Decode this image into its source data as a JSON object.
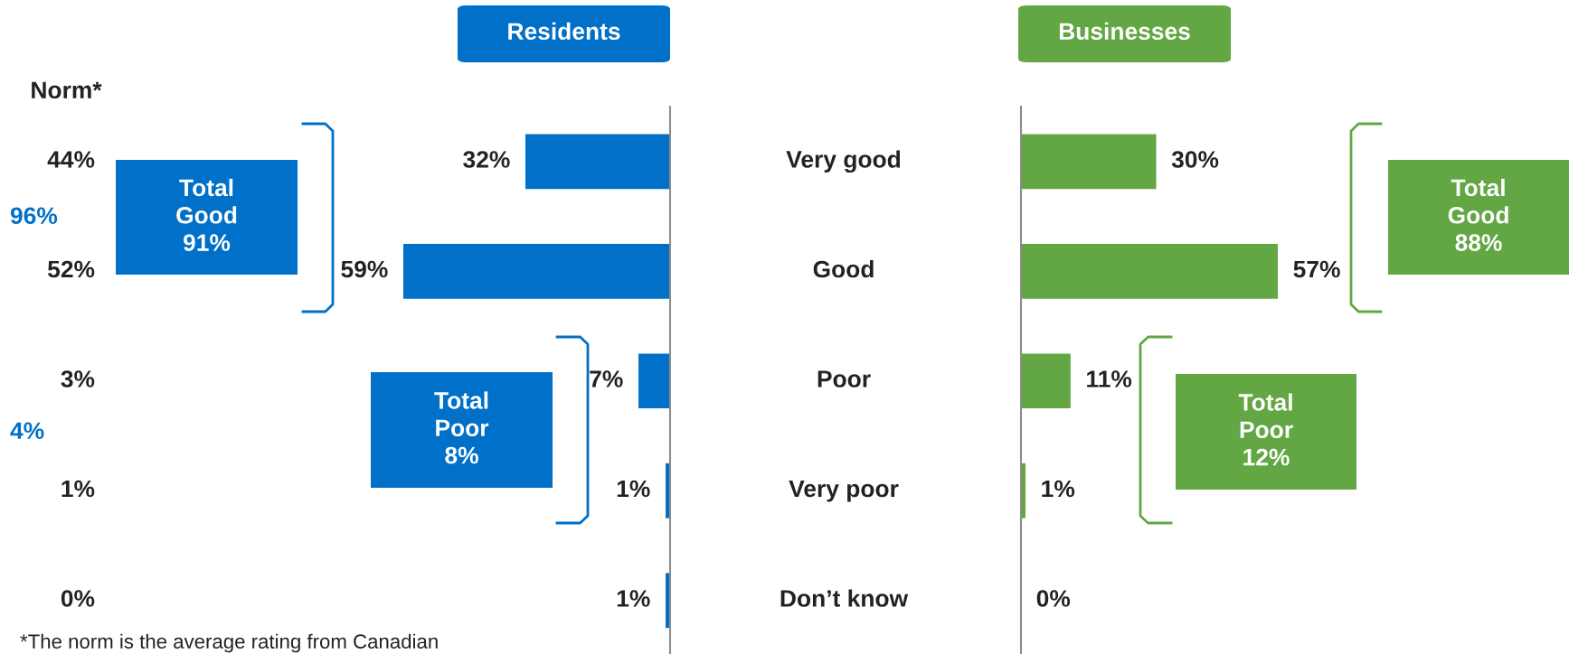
{
  "chart_data": [
    {
      "type": "bar",
      "orientation": "horizontal",
      "title": "Residents",
      "categories": [
        "Very good",
        "Good",
        "Poor",
        "Very poor",
        "Don’t know"
      ],
      "series": [
        {
          "color": "#0070c8",
          "values": [
            32,
            59,
            7,
            1,
            1
          ],
          "value_labels": [
            "32%",
            "59%",
            "7%",
            "1%",
            "1%"
          ]
        }
      ],
      "annotations": [
        "Norm*",
        "44%",
        "52%",
        "3%",
        "1%",
        "0%",
        "96%",
        "4%",
        "Total\nGood\n91%",
        "Total\nPoor\n8%",
        "*The norm is the average rating from Canadian"
      ]
    },
    {
      "type": "bar",
      "orientation": "horizontal",
      "title": "Businesses",
      "categories": [
        null,
        null,
        null,
        null,
        null
      ],
      "series": [
        {
          "color": "#62a744",
          "values": [
            30,
            57,
            11,
            1,
            0
          ],
          "value_labels": [
            "30%",
            "57%",
            "11%",
            "1%",
            "0%"
          ]
        }
      ],
      "annotations": [
        "Total\nGood\n88%",
        "Total\nPoor\n12%"
      ]
    }
  ]
}
